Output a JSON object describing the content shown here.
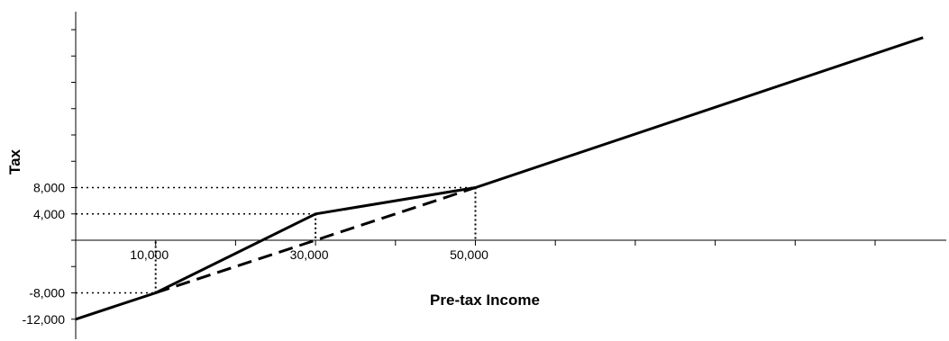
{
  "chart_data": {
    "type": "line",
    "title": "",
    "xlabel": "Pre-tax Income",
    "ylabel": "Tax",
    "xlim": [
      0,
      110000
    ],
    "ylim": [
      -14000,
      40000
    ],
    "x_tick_labels": [
      {
        "value": 10000,
        "label": "10,000"
      },
      {
        "value": 30000,
        "label": "30,000"
      },
      {
        "value": 50000,
        "label": "50,000"
      }
    ],
    "y_tick_labels": [
      {
        "value": 8000,
        "label": "8,000"
      },
      {
        "value": 4000,
        "label": "4,000"
      },
      {
        "value": -8000,
        "label": "-8,000"
      },
      {
        "value": -12000,
        "label": "-12,000"
      }
    ],
    "x_minor_ticks": [
      10000,
      20000,
      30000,
      40000,
      50000,
      60000,
      70000,
      80000,
      90000,
      100000,
      110000
    ],
    "series": [
      {
        "style": "solid",
        "color": "#000000",
        "x": [
          0,
          10000,
          30000,
          50000,
          106000
        ],
        "y": [
          -12000,
          -8000,
          4000,
          8000,
          30800
        ]
      },
      {
        "style": "dashed",
        "color": "#000000",
        "x": [
          10000,
          30000,
          50000
        ],
        "y": [
          -8000,
          0,
          8000
        ]
      }
    ],
    "guide_lines": [
      {
        "x": 10000,
        "y": -8000
      },
      {
        "x": 30000,
        "y": 4000
      },
      {
        "x": 50000,
        "y": 8000
      }
    ],
    "grid": false,
    "legend": "none"
  }
}
